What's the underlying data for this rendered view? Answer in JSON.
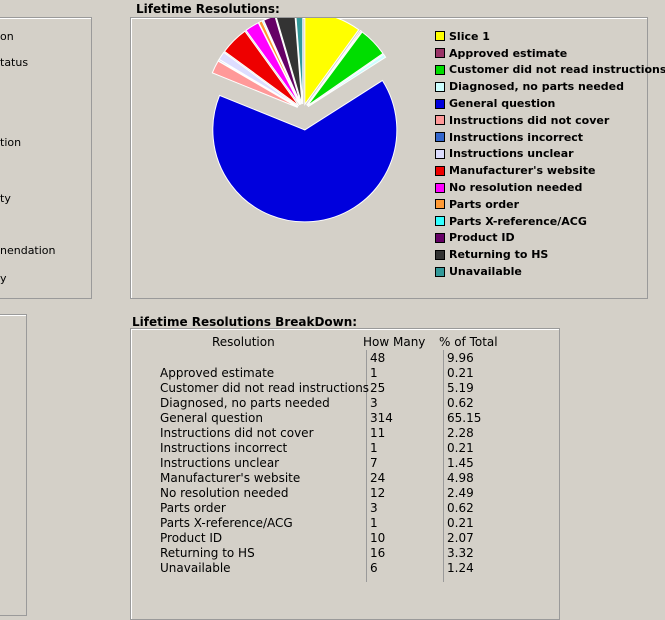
{
  "left_panel": {
    "items": [
      "on",
      "tatus",
      "tion",
      "ty",
      "nendation",
      "y"
    ]
  },
  "chart_section": {
    "title": "Lifetime Resolutions:"
  },
  "table_section": {
    "title": "Lifetime Resolutions BreakDown:",
    "headers": [
      "Resolution",
      "How Many",
      "% of Total"
    ],
    "rows": [
      {
        "resolution": "",
        "count": "48",
        "pct": "9.96"
      },
      {
        "resolution": "Approved estimate",
        "count": "1",
        "pct": "0.21"
      },
      {
        "resolution": "Customer did not read instructions",
        "count": "25",
        "pct": "5.19"
      },
      {
        "resolution": "Diagnosed, no parts needed",
        "count": "3",
        "pct": "0.62"
      },
      {
        "resolution": "General question",
        "count": "314",
        "pct": "65.15"
      },
      {
        "resolution": "Instructions did not cover",
        "count": "11",
        "pct": "2.28"
      },
      {
        "resolution": "Instructions incorrect",
        "count": "1",
        "pct": "0.21"
      },
      {
        "resolution": "Instructions unclear",
        "count": "7",
        "pct": "1.45"
      },
      {
        "resolution": "Manufacturer's website",
        "count": "24",
        "pct": "4.98"
      },
      {
        "resolution": "No resolution needed",
        "count": "12",
        "pct": "2.49"
      },
      {
        "resolution": "Parts order",
        "count": "3",
        "pct": "0.62"
      },
      {
        "resolution": "Parts X-reference/ACG",
        "count": "1",
        "pct": "0.21"
      },
      {
        "resolution": "Product ID",
        "count": "10",
        "pct": "2.07"
      },
      {
        "resolution": "Returning to HS",
        "count": "16",
        "pct": "3.32"
      },
      {
        "resolution": "Unavailable",
        "count": "6",
        "pct": "1.24"
      }
    ]
  },
  "chart_data": {
    "type": "pie",
    "slices": [
      {
        "label": "Slice 1",
        "value": 48,
        "color": "#ffff00"
      },
      {
        "label": "Approved estimate",
        "value": 1,
        "color": "#993366"
      },
      {
        "label": "Customer did not read instructions",
        "value": 25,
        "color": "#00dd00"
      },
      {
        "label": "Diagnosed, no parts needed",
        "value": 3,
        "color": "#ccffff"
      },
      {
        "label": "General question",
        "value": 314,
        "color": "#0000dd"
      },
      {
        "label": "Instructions did not cover",
        "value": 11,
        "color": "#ff9999"
      },
      {
        "label": "Instructions incorrect",
        "value": 1,
        "color": "#3366cc"
      },
      {
        "label": "Instructions unclear",
        "value": 7,
        "color": "#ddddff"
      },
      {
        "label": "Manufacturer's website",
        "value": 24,
        "color": "#ee0000"
      },
      {
        "label": "No resolution needed",
        "value": 12,
        "color": "#ff00ff"
      },
      {
        "label": "Parts order",
        "value": 3,
        "color": "#ff9933"
      },
      {
        "label": "Parts X-reference/ACG",
        "value": 1,
        "color": "#33ffff"
      },
      {
        "label": "Product ID",
        "value": 10,
        "color": "#660066"
      },
      {
        "label": "Returning to HS",
        "value": 16,
        "color": "#333333"
      },
      {
        "label": "Unavailable",
        "value": 6,
        "color": "#339999"
      }
    ]
  }
}
